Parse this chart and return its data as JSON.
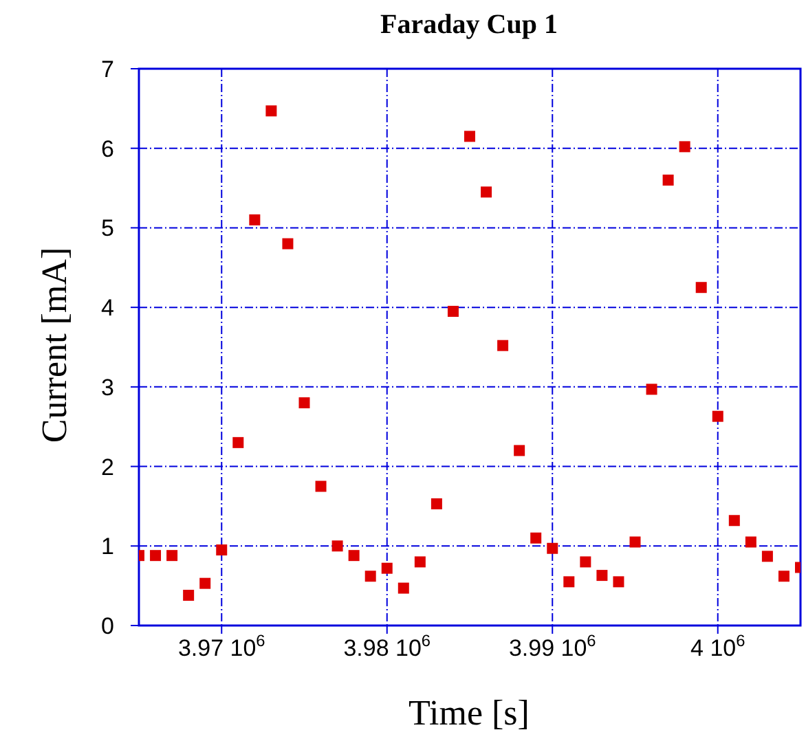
{
  "chart_data": {
    "type": "scatter",
    "title": "Faraday Cup 1",
    "xlabel": "Time [s]",
    "ylabel": "Current [mA]",
    "categories": [
      null,
      null,
      null,
      null,
      null,
      "3.97 10$^{6}$",
      null,
      null,
      null,
      null,
      null,
      null,
      null,
      null,
      null,
      "3.98 10$^{6}$",
      null,
      null,
      null,
      null,
      null,
      null,
      null,
      null,
      null,
      "3.99 10$^{6}$",
      null,
      null,
      null,
      null,
      null,
      null,
      null,
      null,
      null,
      "4 10$^{6}$",
      null,
      null,
      null,
      null,
      null
    ],
    "series": [
      {
        "color": "#dd0000",
        "values": [
          0.88,
          0.88,
          0.88,
          0.38,
          0.53,
          0.95,
          2.3,
          5.1,
          6.47,
          4.8,
          2.8,
          1.75,
          1.0,
          0.88,
          0.62,
          0.72,
          0.47,
          0.8,
          1.53,
          3.95,
          6.15,
          5.45,
          3.52,
          2.2,
          1.1,
          0.97,
          0.55,
          0.8,
          0.63,
          0.55,
          1.05,
          2.97,
          5.6,
          6.02,
          4.25,
          2.63,
          1.32,
          1.05,
          0.87,
          0.62,
          0.73
        ]
      }
    ],
    "ylim": [
      0,
      7
    ],
    "yticks": [
      0,
      1,
      2,
      3,
      4,
      5,
      6,
      7
    ],
    "grid": true,
    "marker": "square"
  }
}
